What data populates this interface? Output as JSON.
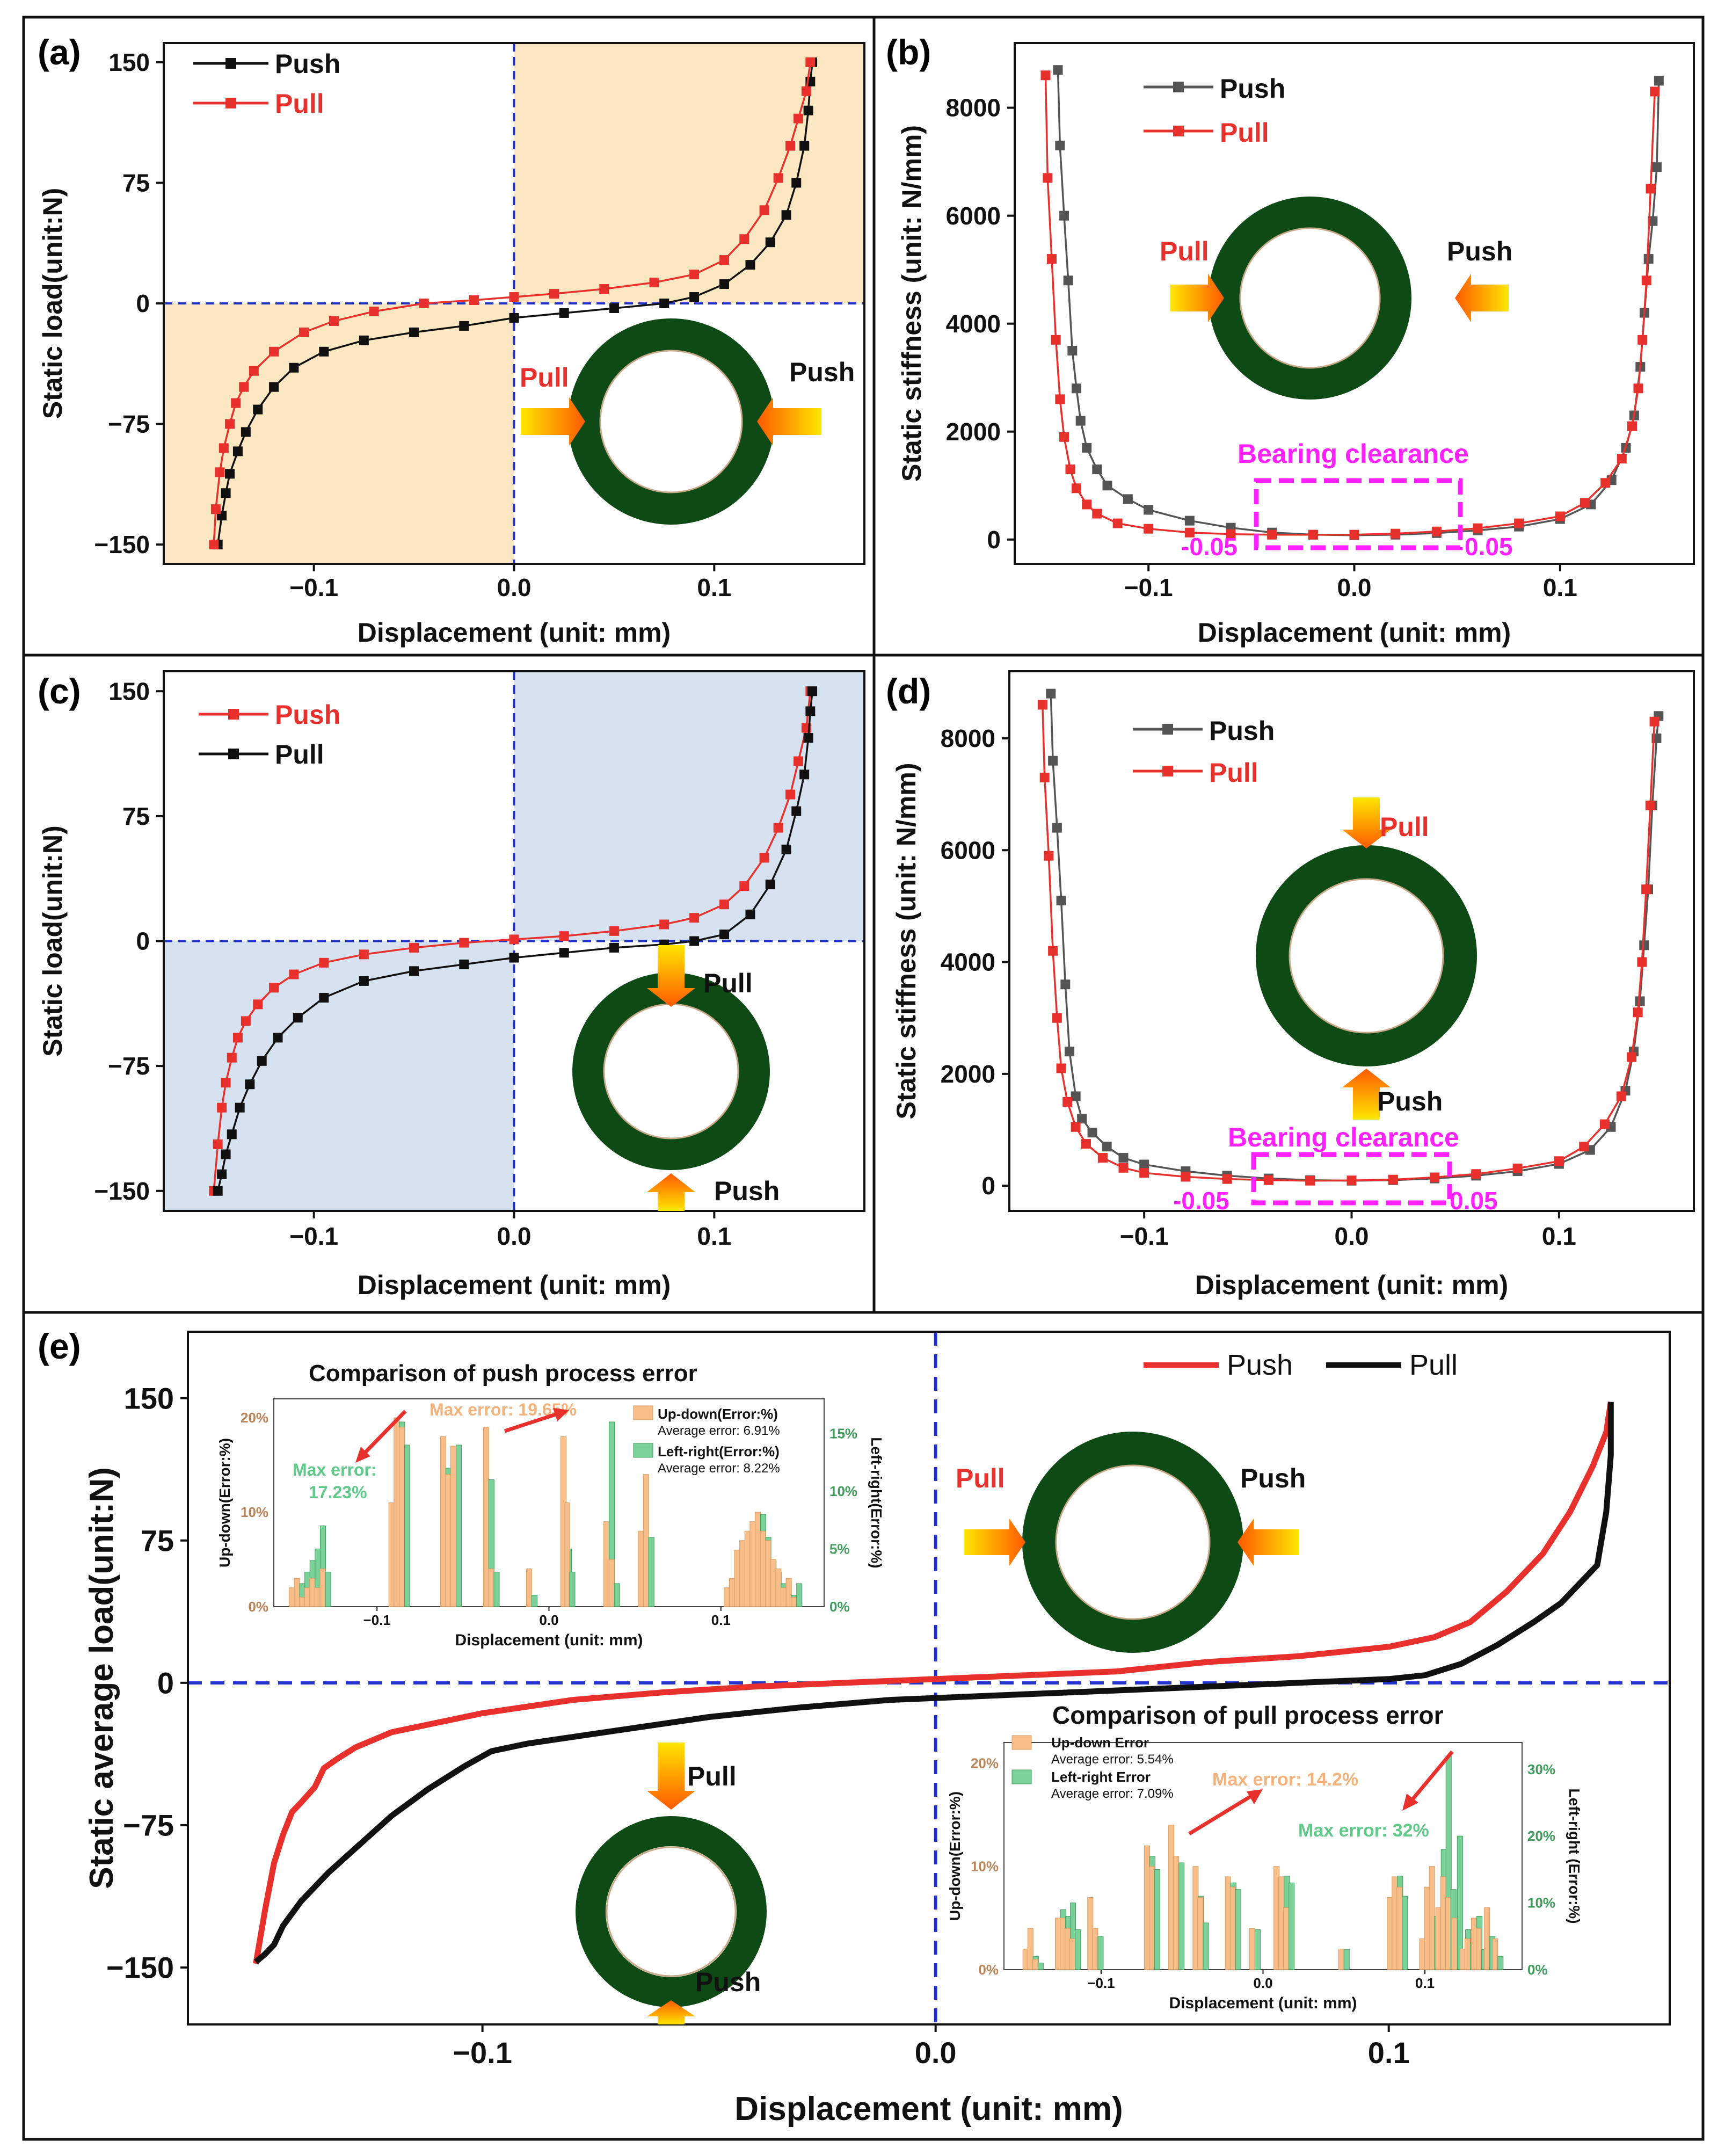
{
  "colors": {
    "push_red": "#e8312c",
    "black": "#111111",
    "magenta": "#ff21ff",
    "blue_dash": "#2233cc",
    "ring": "#0e4a16",
    "orange_bar": "#f7be8a",
    "green_bar": "#7ad29a",
    "shade_a": "#fbe8c2",
    "shade_c": "#d6e2f0",
    "up_label": "#b8865a",
    "left_label": "#3f9d5b"
  },
  "common": {
    "xlabel": "Displacement (unit: mm)",
    "ylabel_load": "Static load(unit:N)",
    "ylabel_stiff": "Static stiffness (unit: N/mm)",
    "ylabel_avg": "Static average load(unit:N)",
    "push": "Push",
    "pull": "Pull",
    "bearing_clearance": "Bearing clearance",
    "clr_lo": "-0.05",
    "clr_hi": "0.05"
  },
  "panel_labels": {
    "a": "(a)",
    "b": "(b)",
    "c": "(c)",
    "d": "(d)",
    "e": "(e)"
  },
  "chart_data": [
    {
      "id": "a",
      "type": "line",
      "xlabel": "Displacement (unit: mm)",
      "ylabel": "Static load(unit:N)",
      "xlim": [
        -0.175,
        0.175
      ],
      "ylim": [
        -162,
        162
      ],
      "xticks": [
        "-0.1",
        "0.0",
        "0.1"
      ],
      "yticks": [
        "150",
        "75",
        "0",
        "-75",
        "-150"
      ],
      "series": [
        {
          "name": "Push",
          "color": "black",
          "x": [
            -0.148,
            -0.146,
            -0.144,
            -0.142,
            -0.138,
            -0.134,
            -0.128,
            -0.12,
            -0.11,
            -0.095,
            -0.075,
            -0.05,
            -0.025,
            0,
            0.025,
            0.05,
            0.075,
            0.09,
            0.105,
            0.118,
            0.128,
            0.136,
            0.141,
            0.145,
            0.147,
            0.148,
            0.149
          ],
          "y": [
            -150,
            -132,
            -118,
            -106,
            -92,
            -80,
            -66,
            -52,
            -40,
            -30,
            -23,
            -18,
            -14,
            -9,
            -6,
            -3,
            0,
            4,
            12,
            24,
            38,
            55,
            75,
            98,
            120,
            138,
            150
          ]
        },
        {
          "name": "Pull",
          "color": "red",
          "x": [
            -0.15,
            -0.149,
            -0.147,
            -0.145,
            -0.142,
            -0.139,
            -0.135,
            -0.13,
            -0.12,
            -0.105,
            -0.09,
            -0.07,
            -0.045,
            -0.02,
            0,
            0.02,
            0.045,
            0.07,
            0.09,
            0.105,
            0.115,
            0.125,
            0.132,
            0.138,
            0.142,
            0.146,
            0.148
          ],
          "y": [
            -150,
            -128,
            -105,
            -90,
            -75,
            -62,
            -52,
            -42,
            -30,
            -18,
            -11,
            -5,
            0,
            2,
            4,
            6,
            9,
            13,
            18,
            27,
            40,
            58,
            78,
            98,
            115,
            132,
            150
          ]
        }
      ]
    },
    {
      "id": "b",
      "type": "line",
      "xlabel": "Displacement (unit: mm)",
      "ylabel": "Static stiffness (unit: N/mm)",
      "xlim": [
        -0.165,
        0.165
      ],
      "ylim": [
        -450,
        9200
      ],
      "xticks": [
        "-0.1",
        "0.0",
        "0.1"
      ],
      "yticks": [
        "8000",
        "6000",
        "4000",
        "2000",
        "0"
      ],
      "series": [
        {
          "name": "Push",
          "color": "black",
          "x": [
            -0.144,
            -0.143,
            -0.141,
            -0.139,
            -0.137,
            -0.135,
            -0.133,
            -0.13,
            -0.125,
            -0.12,
            -0.11,
            -0.1,
            -0.08,
            -0.06,
            -0.04,
            -0.02,
            0,
            0.02,
            0.04,
            0.06,
            0.08,
            0.1,
            0.115,
            0.125,
            0.132,
            0.136,
            0.139,
            0.141,
            0.143,
            0.145,
            0.147,
            0.148
          ],
          "y": [
            8700,
            7300,
            6000,
            4800,
            3500,
            2800,
            2200,
            1700,
            1300,
            1000,
            750,
            550,
            350,
            220,
            130,
            90,
            80,
            90,
            120,
            170,
            240,
            380,
            650,
            1100,
            1700,
            2300,
            3200,
            4200,
            5200,
            5900,
            6900,
            8500
          ]
        },
        {
          "name": "Pull",
          "color": "red",
          "x": [
            -0.15,
            -0.149,
            -0.147,
            -0.145,
            -0.143,
            -0.141,
            -0.138,
            -0.135,
            -0.13,
            -0.125,
            -0.115,
            -0.1,
            -0.08,
            -0.06,
            -0.04,
            -0.02,
            0,
            0.02,
            0.04,
            0.06,
            0.08,
            0.1,
            0.112,
            0.122,
            0.13,
            0.135,
            0.138,
            0.14,
            0.142,
            0.144,
            0.146
          ],
          "y": [
            8600,
            6700,
            5200,
            3700,
            2600,
            1900,
            1300,
            950,
            650,
            480,
            300,
            200,
            130,
            100,
            90,
            90,
            90,
            110,
            150,
            210,
            300,
            430,
            680,
            1050,
            1500,
            2100,
            2800,
            3700,
            4800,
            6500,
            8300
          ]
        }
      ]
    },
    {
      "id": "c",
      "type": "line",
      "xlabel": "Displacement (unit: mm)",
      "ylabel": "Static load(unit:N)",
      "xlim": [
        -0.175,
        0.175
      ],
      "ylim": [
        -162,
        162
      ],
      "xticks": [
        "-0.1",
        "0.0",
        "0.1"
      ],
      "yticks": [
        "150",
        "75",
        "0",
        "-75",
        "-150"
      ],
      "series": [
        {
          "name": "Push",
          "color": "red",
          "x": [
            -0.15,
            -0.148,
            -0.146,
            -0.144,
            -0.141,
            -0.138,
            -0.134,
            -0.128,
            -0.12,
            -0.11,
            -0.095,
            -0.075,
            -0.05,
            -0.025,
            0,
            0.025,
            0.05,
            0.075,
            0.09,
            0.105,
            0.115,
            0.125,
            0.132,
            0.138,
            0.142,
            0.146,
            0.148
          ],
          "y": [
            -150,
            -122,
            -100,
            -85,
            -70,
            -58,
            -48,
            -38,
            -28,
            -20,
            -13,
            -8,
            -4,
            -1,
            1,
            3,
            6,
            10,
            14,
            22,
            33,
            50,
            68,
            88,
            108,
            128,
            150
          ]
        },
        {
          "name": "Pull",
          "color": "black",
          "x": [
            -0.148,
            -0.146,
            -0.144,
            -0.141,
            -0.137,
            -0.132,
            -0.126,
            -0.118,
            -0.108,
            -0.095,
            -0.075,
            -0.05,
            -0.025,
            0,
            0.025,
            0.05,
            0.075,
            0.09,
            0.105,
            0.118,
            0.128,
            0.136,
            0.141,
            0.145,
            0.147,
            0.148,
            0.149
          ],
          "y": [
            -150,
            -140,
            -128,
            -116,
            -100,
            -86,
            -72,
            -58,
            -46,
            -34,
            -24,
            -18,
            -14,
            -10,
            -7,
            -4,
            -2,
            0,
            4,
            16,
            34,
            55,
            78,
            100,
            122,
            138,
            150
          ]
        }
      ]
    },
    {
      "id": "d",
      "type": "line",
      "xlabel": "Displacement (unit: mm)",
      "ylabel": "Static stiffness (unit: N/mm)",
      "xlim": [
        -0.165,
        0.165
      ],
      "ylim": [
        -450,
        9200
      ],
      "xticks": [
        "-0.1",
        "0.0",
        "0.1"
      ],
      "yticks": [
        "8000",
        "6000",
        "4000",
        "2000",
        "0"
      ],
      "series": [
        {
          "name": "Push",
          "color": "black",
          "x": [
            -0.145,
            -0.144,
            -0.142,
            -0.14,
            -0.138,
            -0.136,
            -0.133,
            -0.13,
            -0.125,
            -0.118,
            -0.11,
            -0.1,
            -0.08,
            -0.06,
            -0.04,
            -0.02,
            0,
            0.02,
            0.04,
            0.06,
            0.08,
            0.1,
            0.115,
            0.125,
            0.132,
            0.136,
            0.139,
            0.141,
            0.143,
            0.145,
            0.147,
            0.148
          ],
          "y": [
            8800,
            7600,
            6400,
            5100,
            3600,
            2400,
            1600,
            1200,
            950,
            700,
            500,
            380,
            260,
            180,
            130,
            100,
            90,
            100,
            130,
            180,
            260,
            390,
            640,
            1050,
            1700,
            2400,
            3300,
            4300,
            5300,
            6800,
            8000,
            8400
          ]
        },
        {
          "name": "Pull",
          "color": "red",
          "x": [
            -0.149,
            -0.148,
            -0.146,
            -0.144,
            -0.142,
            -0.14,
            -0.137,
            -0.133,
            -0.128,
            -0.12,
            -0.11,
            -0.1,
            -0.08,
            -0.06,
            -0.04,
            -0.02,
            0,
            0.02,
            0.04,
            0.06,
            0.08,
            0.1,
            0.112,
            0.122,
            0.13,
            0.135,
            0.138,
            0.14,
            0.142,
            0.144,
            0.146
          ],
          "y": [
            8600,
            7300,
            5900,
            4200,
            3000,
            2100,
            1500,
            1050,
            750,
            500,
            320,
            230,
            160,
            120,
            100,
            90,
            95,
            110,
            150,
            210,
            310,
            440,
            700,
            1100,
            1600,
            2300,
            3100,
            4000,
            5300,
            6800,
            8300
          ]
        }
      ]
    },
    {
      "id": "e",
      "type": "line",
      "xlabel": "Displacement (unit: mm)",
      "ylabel": "Static average load(unit:N)",
      "xlim": [
        -0.165,
        0.162
      ],
      "ylim": [
        -180,
        185
      ],
      "xticks": [
        "-0.1",
        "0.0",
        "0.1"
      ],
      "yticks": [
        "150",
        "75",
        "0",
        "-75",
        "-150"
      ],
      "series": [
        {
          "name": "Push",
          "color": "red",
          "x": [
            -0.15,
            -0.148,
            -0.146,
            -0.144,
            -0.142,
            -0.14,
            -0.137,
            -0.135,
            -0.132,
            -0.128,
            -0.12,
            -0.1,
            -0.08,
            -0.06,
            -0.04,
            -0.02,
            0,
            0.02,
            0.04,
            0.06,
            0.08,
            0.1,
            0.11,
            0.118,
            0.126,
            0.134,
            0.14,
            0.145,
            0.148,
            0.149
          ],
          "y": [
            -148,
            -120,
            -95,
            -80,
            -68,
            -63,
            -55,
            -45,
            -40,
            -34,
            -26,
            -16,
            -9,
            -5,
            -2,
            0,
            2,
            4,
            6,
            11,
            14,
            19,
            24,
            32,
            48,
            68,
            90,
            114,
            132,
            148
          ]
        },
        {
          "name": "Pull",
          "color": "black",
          "x": [
            -0.15,
            -0.148,
            -0.146,
            -0.144,
            -0.14,
            -0.134,
            -0.127,
            -0.12,
            -0.112,
            -0.104,
            -0.098,
            -0.09,
            -0.07,
            -0.05,
            -0.03,
            -0.01,
            0,
            0.02,
            0.04,
            0.06,
            0.08,
            0.1,
            0.108,
            0.116,
            0.124,
            0.132,
            0.138,
            0.142,
            0.146,
            0.148,
            0.149,
            0.149
          ],
          "y": [
            -147,
            -143,
            -138,
            -128,
            -115,
            -100,
            -85,
            -70,
            -56,
            -44,
            -36,
            -32,
            -25,
            -18,
            -13,
            -9,
            -8,
            -6,
            -4,
            -2,
            0,
            2,
            4,
            10,
            20,
            32,
            42,
            52,
            62,
            90,
            120,
            148
          ]
        }
      ]
    }
  ],
  "inset_push": {
    "title": "Comparison of push process error",
    "ylabel_left": "Up-down(Error:%)",
    "ylabel_right": "Left-right(Error:%)",
    "xlabel": "Displacement (unit: mm)",
    "legend": {
      "up": "Up-down(Error:%)",
      "up_avg": "Average error: 6.91%",
      "lr": "Left-right(Error:%)",
      "lr_avg": "Average error: 8.22%"
    },
    "max_up": "Max error: 19.65%",
    "max_lr": "Max error:",
    "max_lr_val": "17.23%",
    "yticks_left": [
      "20%",
      "10%",
      "0%"
    ],
    "yticks_right": [
      "15%",
      "10%",
      "5%",
      "0%"
    ],
    "xticks": [
      "-0.1",
      "0.0",
      "0.1"
    ],
    "x": [
      -0.148,
      -0.145,
      -0.142,
      -0.139,
      -0.136,
      -0.133,
      -0.13,
      -0.09,
      -0.087,
      -0.084,
      -0.06,
      -0.057,
      -0.054,
      -0.035,
      -0.032,
      -0.01,
      0.01,
      0.012,
      0.035,
      0.038,
      0.055,
      0.058,
      0.105,
      0.108,
      0.111,
      0.114,
      0.117,
      0.12,
      0.123,
      0.126,
      0.129,
      0.132,
      0.135,
      0.138,
      0.141,
      0.144
    ],
    "up": [
      2,
      3,
      1,
      2,
      3,
      2,
      4,
      11,
      20,
      19,
      18,
      14,
      17,
      19,
      4,
      4,
      18,
      11,
      9,
      5,
      8,
      14,
      2,
      3,
      6,
      7,
      8,
      9,
      10,
      8,
      7,
      5,
      4,
      2,
      3,
      1
    ],
    "lr": [
      1,
      2,
      3,
      4,
      5,
      7,
      3,
      15,
      16,
      14,
      12,
      13,
      14,
      11,
      3,
      1,
      5,
      3,
      16,
      2,
      4,
      6,
      1,
      2,
      3,
      4,
      6,
      7,
      8,
      6,
      4,
      3,
      2,
      1,
      1,
      2
    ]
  },
  "inset_pull": {
    "title": "Comparison of pull process error",
    "ylabel_left": "Up-down(Error:%)",
    "ylabel_right": "Left-right (Error:%)",
    "xlabel": "Displacement (unit: mm)",
    "legend": {
      "up": "Up-down Error",
      "up_avg": "Average error: 5.54%",
      "lr": "Left-right Error",
      "lr_avg": "Average error: 7.09%"
    },
    "max_up": "Max error: 14.2%",
    "max_lr": "Max error: 32%",
    "yticks_left": [
      "20%",
      "10%",
      "0%"
    ],
    "yticks_right": [
      "30%",
      "20%",
      "10%",
      "0%"
    ],
    "xticks": [
      "-0.1",
      "0.0",
      "0.1"
    ],
    "x": [
      -0.145,
      -0.142,
      -0.139,
      -0.125,
      -0.122,
      -0.119,
      -0.116,
      -0.105,
      -0.102,
      -0.07,
      -0.067,
      -0.055,
      -0.052,
      -0.04,
      -0.037,
      -0.02,
      -0.017,
      -0.005,
      0.01,
      0.013,
      0.016,
      0.05,
      0.08,
      0.083,
      0.086,
      0.1,
      0.103,
      0.106,
      0.11,
      0.113,
      0.116,
      0.12,
      0.125,
      0.128,
      0.132,
      0.135,
      0.14,
      0.145
    ],
    "up": [
      2,
      4,
      1,
      5,
      5,
      4,
      3,
      7,
      4,
      12,
      10,
      14,
      11,
      10,
      7,
      9,
      8,
      4,
      10,
      9,
      6,
      2,
      7,
      9,
      8,
      3,
      8,
      10,
      6,
      9,
      7,
      5,
      2,
      3,
      5,
      4,
      6,
      3
    ],
    "lr": [
      1,
      2,
      1,
      9,
      8,
      10,
      6,
      4,
      5,
      17,
      15,
      14,
      16,
      11,
      7,
      13,
      12,
      6,
      9,
      14,
      13,
      3,
      9,
      14,
      11,
      2,
      4,
      8,
      18,
      32,
      12,
      20,
      6,
      4,
      8,
      3,
      5,
      2
    ]
  }
}
